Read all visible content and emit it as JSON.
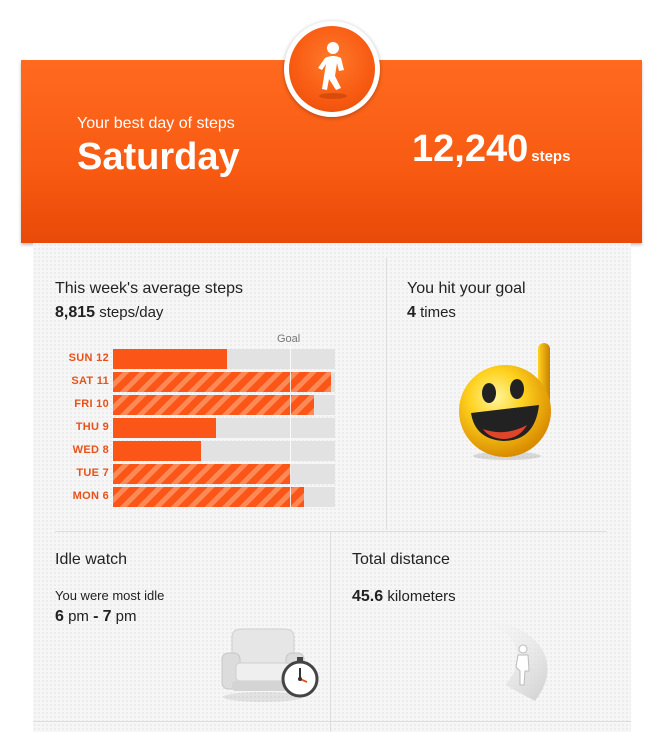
{
  "hero": {
    "label": "Your best day of steps",
    "day": "Saturday",
    "steps_value": "12,240",
    "steps_unit": "steps",
    "colors": {
      "primary": "#fb5617",
      "dark": "#e84a08"
    },
    "icon": "runner-icon"
  },
  "average": {
    "title": "This week's average steps",
    "value": "8,815",
    "unit": "steps/day"
  },
  "chart_data": {
    "type": "bar",
    "orientation": "horizontal",
    "goal_label": "Goal",
    "goal_fraction": 0.797,
    "categories": [
      "SUN 12",
      "SAT 11",
      "FRI 10",
      "THU 9",
      "WED 8",
      "TUE 7",
      "MON 6"
    ],
    "fractions": [
      0.514,
      0.982,
      0.905,
      0.464,
      0.396,
      0.802,
      0.862
    ],
    "goal_met": [
      false,
      true,
      true,
      false,
      false,
      true,
      true
    ],
    "bar_color": "#fb5617",
    "stripe_color": "#fd8a56",
    "track_color": "#e2e2e2"
  },
  "goal": {
    "title": "You hit your goal",
    "count": "4",
    "unit": "times",
    "icon": "smiley-thumbs-up-icon"
  },
  "idle": {
    "title": "Idle watch",
    "subtitle": "You were most idle",
    "start": "6",
    "start_unit": "pm",
    "separator": "-",
    "end": "7",
    "end_unit": "pm",
    "icon": "armchair-stopwatch-icon"
  },
  "distance": {
    "title": "Total distance",
    "value": "45.6",
    "unit": "kilometers",
    "icon": "walker-road-icon"
  }
}
